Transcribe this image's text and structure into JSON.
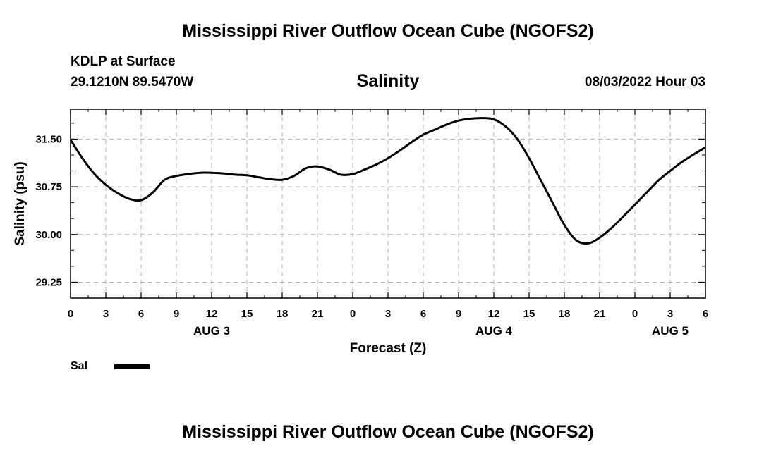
{
  "header": {
    "title": "Mississippi River Outflow Ocean Cube (NGOFS2)",
    "station": "KDLP at Surface",
    "coords": "29.1210N  89.5470W",
    "parameter": "Salinity",
    "timestamp": "08/03/2022 Hour 03"
  },
  "footer": {
    "title": "Mississippi River Outflow Ocean Cube (NGOFS2)"
  },
  "legend": {
    "label": "Sal",
    "color": "#000000"
  },
  "chart_data": {
    "type": "line",
    "title": "Salinity",
    "xlabel": "Forecast (Z)",
    "ylabel": "Salinity (psu)",
    "ylim": [
      29.0,
      31.97
    ],
    "y_ticks": [
      29.25,
      30.0,
      30.75,
      31.5
    ],
    "y_tick_labels": [
      "29.25",
      "30.00",
      "30.75",
      "31.50"
    ],
    "x_tick_hours": [
      0,
      3,
      6,
      9,
      12,
      15,
      18,
      21,
      24,
      27,
      30,
      33,
      36,
      39,
      42,
      45,
      48,
      51,
      54
    ],
    "x_tick_labels": [
      "0",
      "3",
      "6",
      "9",
      "12",
      "15",
      "18",
      "21",
      "0",
      "3",
      "6",
      "9",
      "12",
      "15",
      "18",
      "21",
      "0",
      "3",
      "6"
    ],
    "date_labels": [
      {
        "text": "AUG 3",
        "hour": 12
      },
      {
        "text": "AUG 4",
        "hour": 36
      },
      {
        "text": "AUG 5",
        "hour": 51
      }
    ],
    "grid": true,
    "series": [
      {
        "name": "Sal",
        "x": [
          0,
          1,
          2,
          3,
          4,
          5,
          6,
          7,
          8,
          9,
          10,
          11,
          12,
          13,
          14,
          15,
          16,
          17,
          18,
          19,
          20,
          21,
          22,
          23,
          24,
          25,
          26,
          27,
          28,
          29,
          30,
          31,
          32,
          33,
          34,
          35,
          36,
          37,
          38,
          39,
          40,
          41,
          42,
          43,
          44,
          45,
          46,
          47,
          48,
          49,
          50,
          51,
          52,
          53,
          54
        ],
        "values": [
          31.49,
          31.2,
          30.96,
          30.78,
          30.65,
          30.56,
          30.54,
          30.66,
          30.86,
          30.92,
          30.95,
          30.97,
          30.97,
          30.96,
          30.94,
          30.93,
          30.9,
          30.87,
          30.86,
          30.92,
          31.04,
          31.07,
          31.02,
          30.94,
          30.95,
          31.02,
          31.1,
          31.2,
          31.32,
          31.45,
          31.57,
          31.65,
          31.73,
          31.79,
          31.82,
          31.83,
          31.81,
          31.7,
          31.5,
          31.2,
          30.85,
          30.5,
          30.15,
          29.91,
          29.86,
          29.95,
          30.1,
          30.28,
          30.47,
          30.66,
          30.85,
          31.0,
          31.14,
          31.26,
          31.37
        ]
      }
    ]
  }
}
